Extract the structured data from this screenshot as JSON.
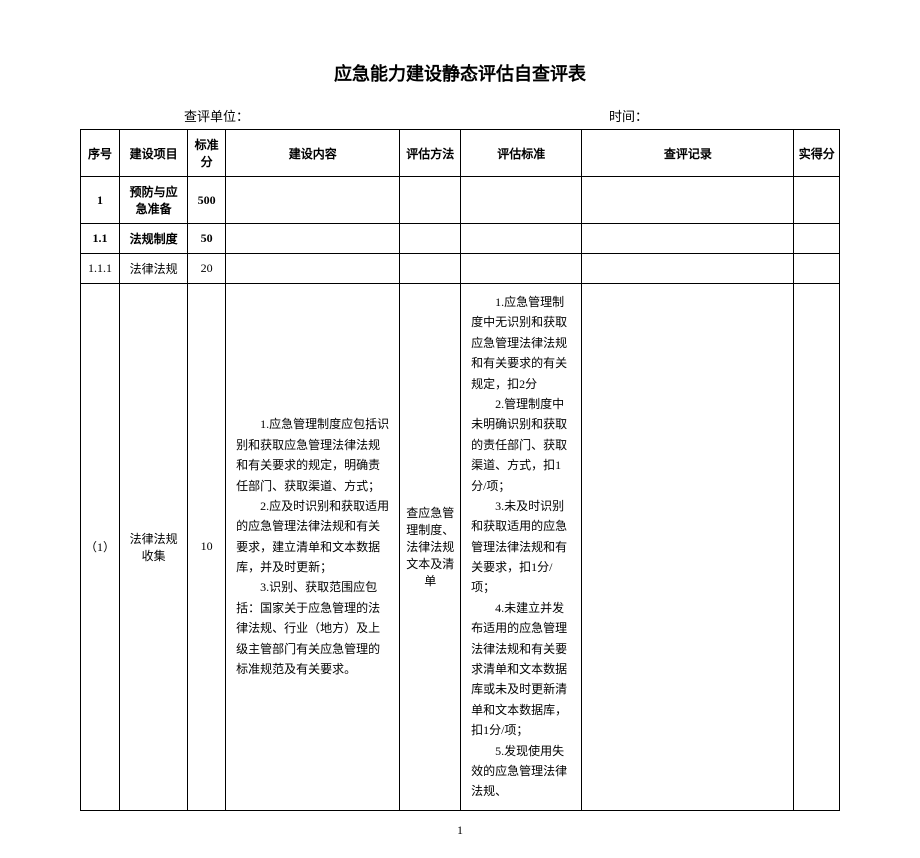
{
  "title": "应急能力建设静态评估自查评表",
  "meta": {
    "unit_label": "查评单位：",
    "time_label": "时间："
  },
  "headers": {
    "seq": "序号",
    "item": "建设项目",
    "score": "标准分",
    "content": "建设内容",
    "method": "评估方法",
    "standard": "评估标准",
    "record": "查评记录",
    "actual": "实得分"
  },
  "rows": [
    {
      "seq": "1",
      "item": "预防与应急准备",
      "score": "500",
      "bold": true
    },
    {
      "seq": "1.1",
      "item": "法规制度",
      "score": "50",
      "bold": true
    },
    {
      "seq": "1.1.1",
      "item": "法律法规",
      "score": "20",
      "bold": false
    },
    {
      "seq": "（1）",
      "item": "法律法规收集",
      "score": "10",
      "content": "　　1.应急管理制度应包括识别和获取应急管理法律法规和有关要求的规定，明确责任部门、获取渠道、方式；\n　　2.应及时识别和获取适用的应急管理法律法规和有关要求，建立清单和文本数据库，并及时更新；\n　　3.识别、获取范围应包括：国家关于应急管理的法律法规、行业（地方）及上级主管部门有关应急管理的标准规范及有关要求。",
      "method": "查应急管理制度、法律法规文本及清单",
      "standard": "　　1.应急管理制度中无识别和获取应急管理法律法规和有关要求的有关规定，扣2分\n　　2.管理制度中未明确识别和获取的责任部门、获取渠道、方式，扣1分/项；\n　　3.未及时识别和获取适用的应急管理法律法规和有关要求，扣1分/项；\n　　4.未建立并发布适用的应急管理法律法规和有关要求清单和文本数据库或未及时更新清单和文本数据库，扣1分/项；\n　　5.发现使用失效的应急管理法律法规、",
      "bold": false
    }
  ],
  "page_number": "1"
}
